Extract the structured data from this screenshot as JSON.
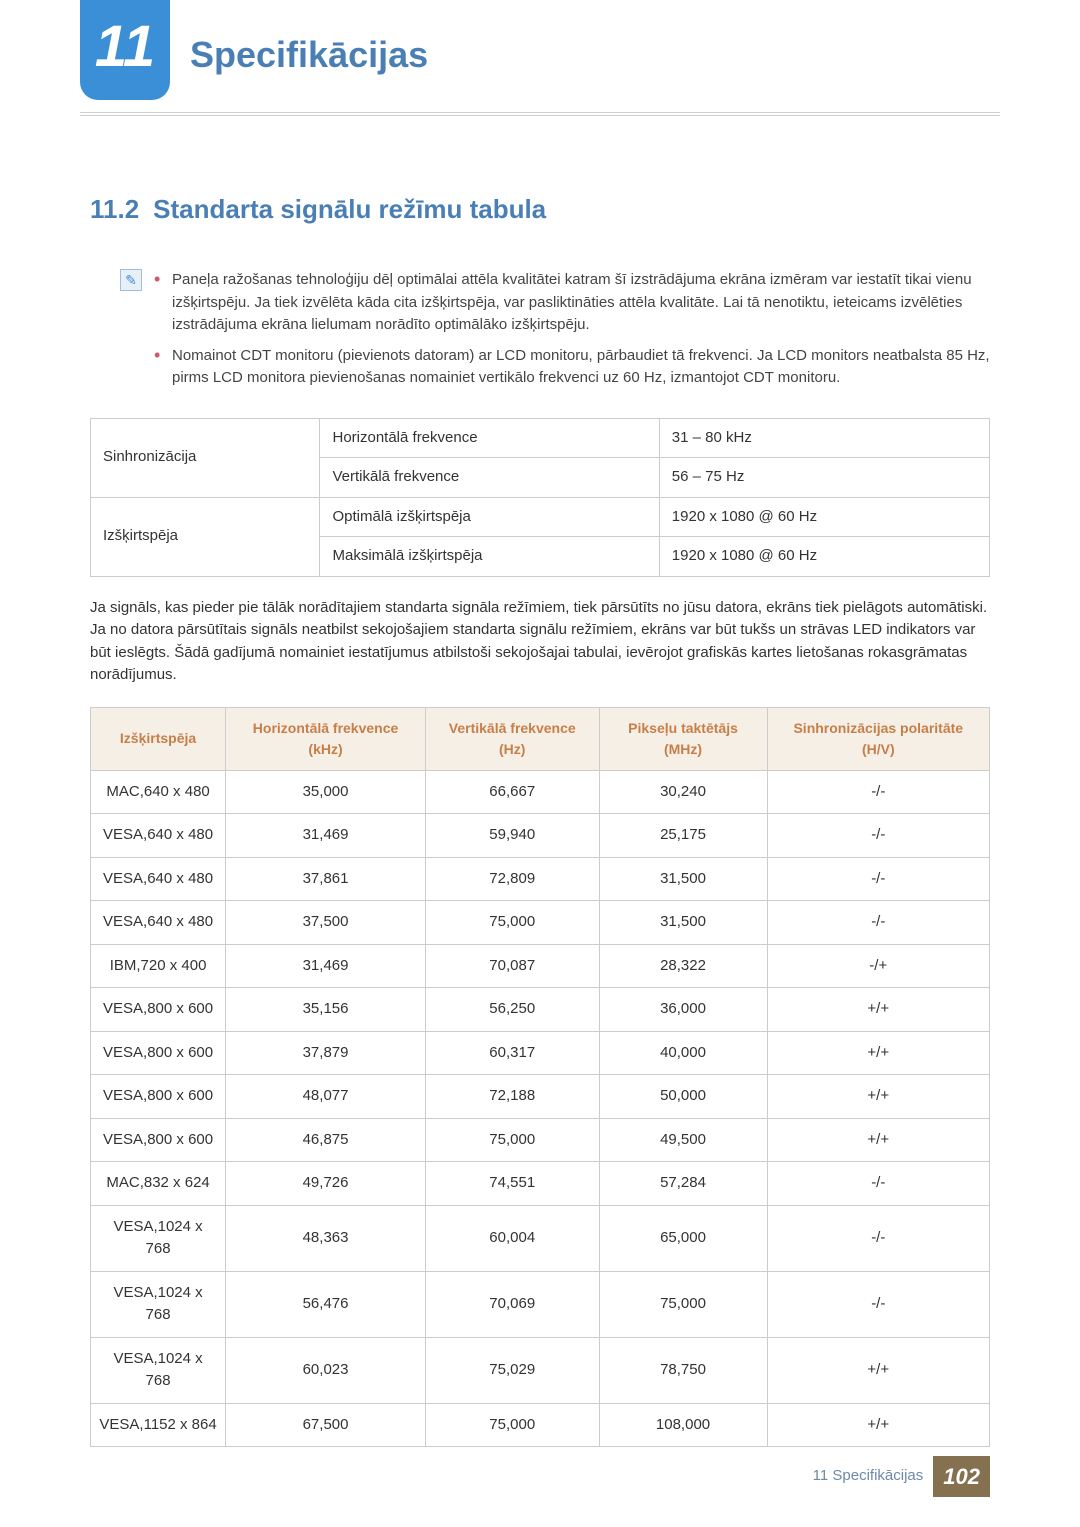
{
  "chapter": {
    "number": "11",
    "title": "Specifikācijas"
  },
  "section": {
    "number": "11.2",
    "title": "Standarta signālu režīmu tabula"
  },
  "notes": [
    "Paneļa ražošanas tehnoloģiju dēļ optimālai attēla kvalitātei katram šī izstrādājuma ekrāna izmēram var iestatīt tikai vienu izšķirtspēju. Ja tiek izvēlēta kāda cita izšķirtspēja, var pasliktināties attēla kvalitāte. Lai tā nenotiktu, ieteicams izvēlēties izstrādājuma ekrāna lielumam norādīto optimālāko izšķirtspēju.",
    "Nomainot CDT monitoru (pievienots datoram) ar LCD monitoru, pārbaudiet tā frekvenci. Ja LCD monitors neatbalsta 85 Hz, pirms LCD monitora pievienošanas nomainiet vertikālo frekvenci uz 60 Hz, izmantojot CDT monitoru."
  ],
  "spec_table": {
    "rows": [
      {
        "group": "Sinhronizācija",
        "label": "Horizontālā frekvence",
        "value": "31 – 80 kHz"
      },
      {
        "group": "",
        "label": "Vertikālā frekvence",
        "value": "56 – 75 Hz"
      },
      {
        "group": "Izšķirtspēja",
        "label": "Optimālā izšķirtspēja",
        "value": "1920 x 1080 @ 60 Hz"
      },
      {
        "group": "",
        "label": "Maksimālā izšķirtspēja",
        "value": "1920 x 1080 @ 60 Hz"
      }
    ]
  },
  "paragraph": "Ja signāls, kas pieder pie tālāk norādītajiem standarta signāla režīmiem, tiek pārsūtīts no jūsu datora, ekrāns tiek pielāgots automātiski. Ja no datora pārsūtītais signāls neatbilst sekojošajiem standarta signālu režīmiem, ekrāns var būt tukšs un strāvas LED indikators var būt ieslēgts. Šādā gadījumā nomainiet iestatījumus atbilstoši sekojošajai tabulai, ievērojot grafiskās kartes lietošanas rokasgrāmatas norādījumus.",
  "modes_table": {
    "columns": [
      "Izšķirtspēja",
      "Horizontālā frekvence (kHz)",
      "Vertikālā frekvence (Hz)",
      "Pikseļu taktētājs (MHz)",
      "Sinhronizācijas polaritāte (H/V)"
    ],
    "rows": [
      [
        "MAC,640 x 480",
        "35,000",
        "66,667",
        "30,240",
        "-/-"
      ],
      [
        "VESA,640 x 480",
        "31,469",
        "59,940",
        "25,175",
        "-/-"
      ],
      [
        "VESA,640 x 480",
        "37,861",
        "72,809",
        "31,500",
        "-/-"
      ],
      [
        "VESA,640 x 480",
        "37,500",
        "75,000",
        "31,500",
        "-/-"
      ],
      [
        "IBM,720 x 400",
        "31,469",
        "70,087",
        "28,322",
        "-/+"
      ],
      [
        "VESA,800 x 600",
        "35,156",
        "56,250",
        "36,000",
        "+/+"
      ],
      [
        "VESA,800 x 600",
        "37,879",
        "60,317",
        "40,000",
        "+/+"
      ],
      [
        "VESA,800 x 600",
        "48,077",
        "72,188",
        "50,000",
        "+/+"
      ],
      [
        "VESA,800 x 600",
        "46,875",
        "75,000",
        "49,500",
        "+/+"
      ],
      [
        "MAC,832 x 624",
        "49,726",
        "74,551",
        "57,284",
        "-/-"
      ],
      [
        "VESA,1024 x 768",
        "48,363",
        "60,004",
        "65,000",
        "-/-"
      ],
      [
        "VESA,1024 x 768",
        "56,476",
        "70,069",
        "75,000",
        "-/-"
      ],
      [
        "VESA,1024 x 768",
        "60,023",
        "75,029",
        "78,750",
        "+/+"
      ],
      [
        "VESA,1152 x 864",
        "67,500",
        "75,000",
        "108,000",
        "+/+"
      ]
    ]
  },
  "footer": {
    "text": "11 Specifikācijas",
    "page": "102"
  },
  "colors": {
    "accent_blue": "#4a7fb5",
    "badge_blue": "#3b8fd6",
    "bullet_red": "#d5546b",
    "header_bg": "#f6efe6",
    "header_text": "#c77f4a",
    "footer_badge": "#85714f",
    "border": "#cccccc"
  }
}
